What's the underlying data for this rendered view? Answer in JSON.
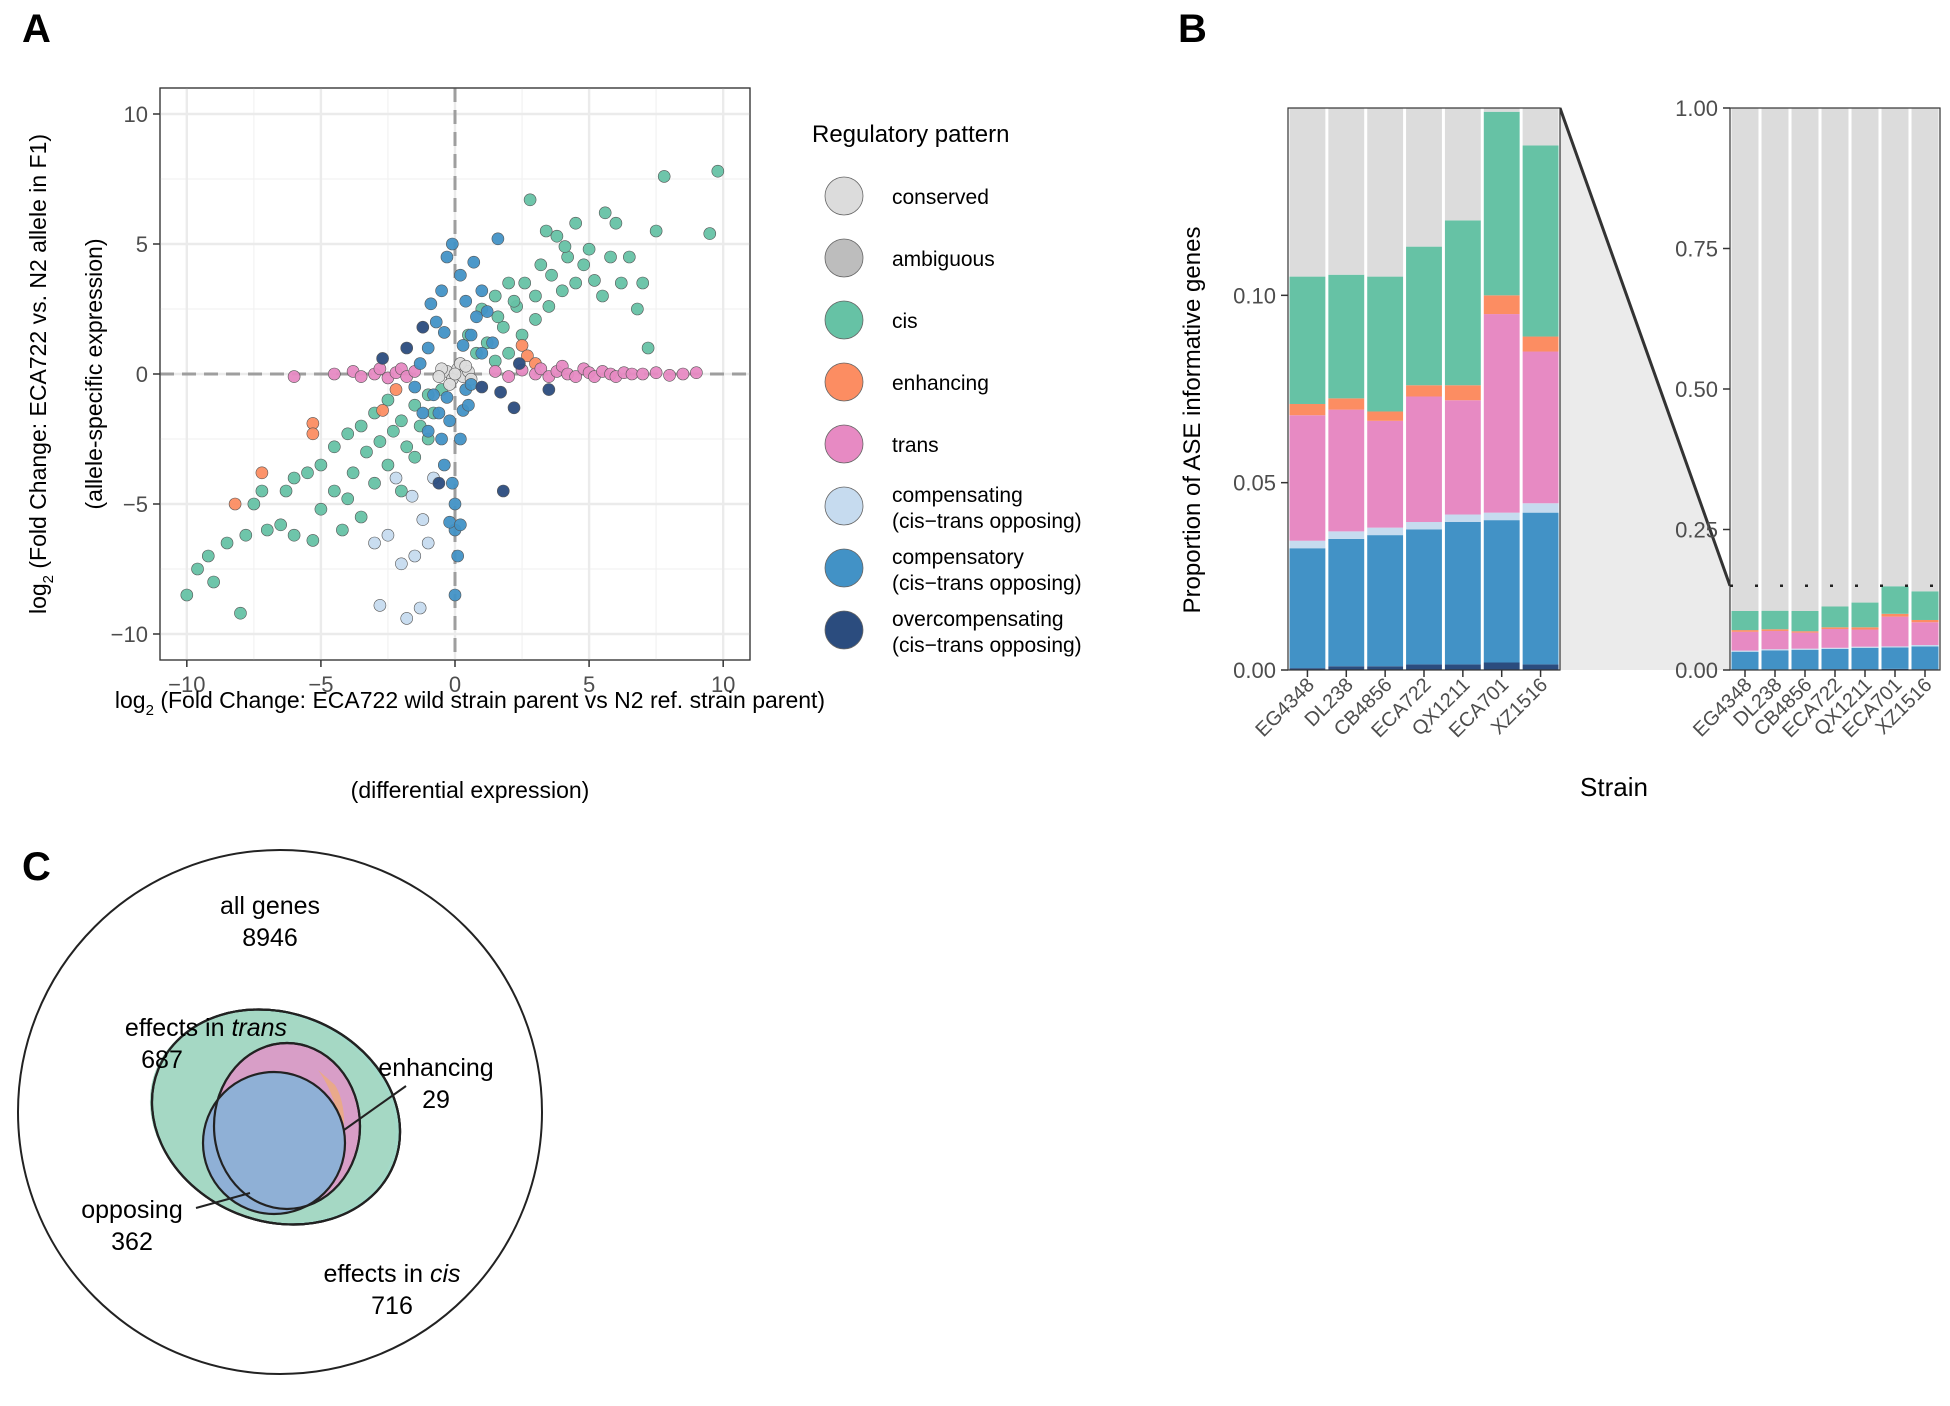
{
  "colors": {
    "conserved": "#dcdcdc",
    "ambiguous": "#bdbdbd",
    "cis": "#66c2a5",
    "enhancing": "#fc8d62",
    "trans": "#e78ac3",
    "compensating": "#c6dbef",
    "compensatory": "#4292c6",
    "overcompensating": "#2b4c7e",
    "grid": "#ebebeb",
    "zoom_fill": "#ebebeb"
  },
  "chart_data": [
    {
      "id": "A",
      "type": "scatter",
      "panel_label": "A",
      "xlabel": "log₂ (Fold Change: ECA722 wild strain parent vs N2 ref. strain parent)",
      "xlabel_prefix": "log",
      "xlabel_sub": "2",
      "xlabel_rest": " (Fold Change: ECA722 wild strain parent vs N2 ref. strain parent)",
      "xlabel2": "(differential expression)",
      "ylabel": "log₂ (Fold Change: ECA722 vs. N2 allele in F1)",
      "ylabel_prefix": "log",
      "ylabel_sub": "2",
      "ylabel_rest": " (Fold Change: ECA722 vs. N2 allele in F1)",
      "ylabel2": "(allele-specific expression)",
      "xlim": [
        -11,
        11
      ],
      "ylim": [
        -11,
        11
      ],
      "x_ticks": [
        -10,
        -5,
        0,
        5,
        10
      ],
      "y_ticks": [
        -10,
        -5,
        0,
        5,
        10
      ],
      "x_tick_labels": [
        "−10",
        "−5",
        "0",
        "5",
        "10"
      ],
      "y_tick_labels": [
        "−10",
        "−5",
        "0",
        "5",
        "10"
      ],
      "legend_title": "Regulatory pattern",
      "legend": [
        {
          "key": "conserved",
          "label": "conserved",
          "label2": ""
        },
        {
          "key": "ambiguous",
          "label": "ambiguous",
          "label2": ""
        },
        {
          "key": "cis",
          "label": "cis",
          "label2": ""
        },
        {
          "key": "enhancing",
          "label": "enhancing",
          "label2": ""
        },
        {
          "key": "trans",
          "label": "trans",
          "label2": ""
        },
        {
          "key": "compensating",
          "label": "compensating",
          "label2": "(cis−trans opposing)"
        },
        {
          "key": "compensatory",
          "label": "compensatory",
          "label2": "(cis−trans opposing)"
        },
        {
          "key": "overcompensating",
          "label": "overcompensating",
          "label2": "(cis−trans opposing)"
        }
      ],
      "series": [
        {
          "name": "cis",
          "points": [
            [
              -10,
              -8.5
            ],
            [
              -9.6,
              -7.5
            ],
            [
              -9.2,
              -7
            ],
            [
              -9,
              -8
            ],
            [
              -8.5,
              -6.5
            ],
            [
              -8,
              -9.2
            ],
            [
              -7.8,
              -6.2
            ],
            [
              -7.5,
              -5
            ],
            [
              -7.2,
              -4.5
            ],
            [
              -7,
              -6
            ],
            [
              -6.5,
              -5.8
            ],
            [
              -6.3,
              -4.5
            ],
            [
              -6,
              -4
            ],
            [
              -6,
              -6.2
            ],
            [
              -5.5,
              -3.8
            ],
            [
              -5.3,
              -6.4
            ],
            [
              -5,
              -3.5
            ],
            [
              -5,
              -5.2
            ],
            [
              -4.5,
              -4.5
            ],
            [
              -4.5,
              -2.8
            ],
            [
              -4.2,
              -6
            ],
            [
              -4,
              -2.3
            ],
            [
              -4,
              -4.8
            ],
            [
              -3.8,
              -3.8
            ],
            [
              -3.5,
              -2
            ],
            [
              -3.5,
              -5.5
            ],
            [
              -3.3,
              -3
            ],
            [
              -3,
              -4.2
            ],
            [
              -3,
              -1.5
            ],
            [
              -2.8,
              -2.6
            ],
            [
              -2.5,
              -3.5
            ],
            [
              -2.5,
              -1
            ],
            [
              -2.3,
              -2.2
            ],
            [
              -2,
              -4.5
            ],
            [
              -2,
              -1.8
            ],
            [
              -1.8,
              -2.8
            ],
            [
              -1.5,
              -1.2
            ],
            [
              -1.5,
              -3.2
            ],
            [
              -1.3,
              -2
            ],
            [
              -1,
              -0.8
            ],
            [
              -1,
              -2.5
            ],
            [
              -0.8,
              -1.5
            ],
            [
              -0.5,
              -0.6
            ],
            [
              0.5,
              1.5
            ],
            [
              0.8,
              0.8
            ],
            [
              1,
              2.5
            ],
            [
              1.2,
              1.2
            ],
            [
              1.5,
              3
            ],
            [
              1.5,
              0.5
            ],
            [
              1.8,
              1.8
            ],
            [
              2,
              3.5
            ],
            [
              2,
              0.8
            ],
            [
              2.3,
              2.6
            ],
            [
              2.5,
              1.5
            ],
            [
              2.8,
              6.7
            ],
            [
              3,
              3
            ],
            [
              3,
              2.1
            ],
            [
              3.2,
              4.2
            ],
            [
              3.5,
              2.6
            ],
            [
              3.6,
              3.8
            ],
            [
              3.8,
              5.3
            ],
            [
              4,
              3.2
            ],
            [
              4.2,
              4.5
            ],
            [
              4.5,
              5.8
            ],
            [
              4.5,
              3.5
            ],
            [
              4.8,
              4.2
            ],
            [
              5,
              4.8
            ],
            [
              5.2,
              3.6
            ],
            [
              5.5,
              3
            ],
            [
              5.8,
              4.5
            ],
            [
              6,
              5.8
            ],
            [
              6.2,
              3.5
            ],
            [
              6.5,
              4.5
            ],
            [
              6.8,
              2.5
            ],
            [
              7,
              3.5
            ],
            [
              7.2,
              1
            ],
            [
              7.5,
              5.5
            ],
            [
              7.8,
              7.6
            ],
            [
              9.5,
              5.4
            ],
            [
              9.8,
              7.8
            ],
            [
              2.2,
              2.8
            ],
            [
              2.6,
              3.5
            ],
            [
              1.6,
              2.2
            ],
            [
              3.4,
              5.5
            ],
            [
              4.1,
              4.9
            ],
            [
              5.6,
              6.2
            ]
          ]
        },
        {
          "name": "enhancing",
          "points": [
            [
              -8.2,
              -5
            ],
            [
              -7.2,
              -3.8
            ],
            [
              -5.3,
              -1.9
            ],
            [
              -5.3,
              -2.3
            ],
            [
              -2.7,
              -1.4
            ],
            [
              -2.2,
              -0.6
            ],
            [
              2.5,
              1.1
            ],
            [
              2.7,
              0.7
            ],
            [
              3,
              0.4
            ]
          ]
        },
        {
          "name": "trans",
          "points": [
            [
              -6,
              -0.1
            ],
            [
              -4.5,
              0
            ],
            [
              -3.8,
              0.1
            ],
            [
              -3.5,
              -0.1
            ],
            [
              -3,
              0
            ],
            [
              -2.8,
              0.2
            ],
            [
              -2.5,
              -0.15
            ],
            [
              -2.2,
              0.05
            ],
            [
              -2,
              0.2
            ],
            [
              -1.8,
              -0.1
            ],
            [
              -1.5,
              0.1
            ],
            [
              1.5,
              0.1
            ],
            [
              2,
              -0.1
            ],
            [
              2.5,
              0.15
            ],
            [
              3,
              0
            ],
            [
              3.2,
              0.2
            ],
            [
              3.5,
              -0.1
            ],
            [
              3.8,
              0.1
            ],
            [
              4,
              0.3
            ],
            [
              4.2,
              0
            ],
            [
              4.5,
              -0.1
            ],
            [
              4.8,
              0.2
            ],
            [
              5,
              0.05
            ],
            [
              5.2,
              -0.1
            ],
            [
              5.5,
              0.1
            ],
            [
              5.8,
              0
            ],
            [
              6,
              -0.1
            ],
            [
              6.3,
              0.05
            ],
            [
              6.6,
              0
            ],
            [
              7,
              0
            ],
            [
              7.5,
              0.05
            ],
            [
              8,
              -0.05
            ],
            [
              8.5,
              0
            ],
            [
              9,
              0.05
            ]
          ]
        },
        {
          "name": "conserved",
          "points": [
            [
              -0.3,
              0.1
            ],
            [
              -0.1,
              -0.2
            ],
            [
              0.1,
              0.2
            ],
            [
              0.3,
              -0.1
            ],
            [
              -0.5,
              0.2
            ],
            [
              0.5,
              0.1
            ],
            [
              0.2,
              0.4
            ],
            [
              -0.2,
              -0.4
            ],
            [
              0,
              0
            ],
            [
              0.6,
              -0.2
            ],
            [
              -0.6,
              -0.1
            ],
            [
              0.4,
              0.3
            ]
          ]
        },
        {
          "name": "compensating",
          "points": [
            [
              -3,
              -6.5
            ],
            [
              -2.8,
              -8.9
            ],
            [
              -2.5,
              -6.2
            ],
            [
              -2.2,
              -4
            ],
            [
              -2,
              -7.3
            ],
            [
              -1.8,
              -9.4
            ],
            [
              -1.5,
              -7
            ],
            [
              -1.3,
              -9
            ],
            [
              -1.2,
              -5.6
            ],
            [
              -1,
              -6.5
            ],
            [
              -0.8,
              -4
            ],
            [
              -1.6,
              -4.7
            ]
          ]
        },
        {
          "name": "compensatory",
          "points": [
            [
              -1.5,
              -0.5
            ],
            [
              -1.2,
              -1.5
            ],
            [
              -1,
              -2.2
            ],
            [
              -0.8,
              -0.8
            ],
            [
              -0.6,
              -1.5
            ],
            [
              -0.5,
              -2.5
            ],
            [
              -0.4,
              -3.5
            ],
            [
              -0.3,
              -0.9
            ],
            [
              -0.2,
              -1.8
            ],
            [
              -0.1,
              -4.2
            ],
            [
              0,
              -5
            ],
            [
              0,
              -6
            ],
            [
              0.1,
              -7
            ],
            [
              0,
              -8.5
            ],
            [
              -0.2,
              -5.7
            ],
            [
              0.2,
              -5.8
            ],
            [
              0.3,
              -1.4
            ],
            [
              0.4,
              -0.6
            ],
            [
              0.5,
              -1.2
            ],
            [
              0.6,
              -0.4
            ],
            [
              0.2,
              -2.5
            ],
            [
              -1,
              1
            ],
            [
              -0.7,
              2
            ],
            [
              -0.5,
              3.2
            ],
            [
              -0.3,
              4.5
            ],
            [
              -0.1,
              5
            ],
            [
              0.2,
              3.8
            ],
            [
              0.4,
              2.8
            ],
            [
              0.6,
              1.5
            ],
            [
              0.8,
              2.2
            ],
            [
              1,
              0.8
            ],
            [
              1,
              3.2
            ],
            [
              1.2,
              2.4
            ],
            [
              1.4,
              1.2
            ],
            [
              1.6,
              5.2
            ],
            [
              0.3,
              1.1
            ],
            [
              -0.4,
              1.6
            ],
            [
              -0.9,
              2.7
            ],
            [
              0.7,
              4.3
            ],
            [
              -1.3,
              0.4
            ]
          ]
        },
        {
          "name": "overcompensating",
          "points": [
            [
              -2.7,
              0.6
            ],
            [
              -1.8,
              1
            ],
            [
              -1.2,
              1.8
            ],
            [
              1,
              -0.5
            ],
            [
              1.7,
              -0.7
            ],
            [
              2.2,
              -1.3
            ],
            [
              3.5,
              -0.6
            ],
            [
              1.8,
              -4.5
            ],
            [
              2.4,
              0.4
            ],
            [
              -0.6,
              -4.2
            ]
          ]
        }
      ]
    },
    {
      "id": "B",
      "type": "bar",
      "stacked": true,
      "panel_label": "B",
      "ylabel": "Proportion of ASE informative genes",
      "xlabel": "Strain",
      "categories": [
        "EG4348",
        "DL238",
        "CB4856",
        "ECA722",
        "QX1211",
        "ECA701",
        "XZ1516"
      ],
      "stack_order": [
        "overcompensating",
        "compensatory",
        "compensating",
        "trans",
        "enhancing",
        "cis",
        "conserved"
      ],
      "series": [
        {
          "name": "overcompensating",
          "values": [
            0.0005,
            0.001,
            0.001,
            0.0015,
            0.0015,
            0.002,
            0.0015
          ]
        },
        {
          "name": "compensatory",
          "values": [
            0.032,
            0.034,
            0.035,
            0.036,
            0.038,
            0.038,
            0.0405
          ]
        },
        {
          "name": "compensating",
          "values": [
            0.002,
            0.002,
            0.002,
            0.002,
            0.002,
            0.002,
            0.0025
          ]
        },
        {
          "name": "trans",
          "values": [
            0.0335,
            0.0325,
            0.0285,
            0.0335,
            0.0305,
            0.053,
            0.0405
          ]
        },
        {
          "name": "enhancing",
          "values": [
            0.003,
            0.003,
            0.0025,
            0.003,
            0.004,
            0.005,
            0.004
          ]
        },
        {
          "name": "cis",
          "values": [
            0.034,
            0.033,
            0.036,
            0.037,
            0.044,
            0.049,
            0.051
          ]
        }
      ],
      "left_panel": {
        "ylim": [
          0,
          0.15
        ],
        "y_ticks": [
          0,
          0.05,
          0.1
        ],
        "y_tick_labels": [
          "0.00",
          "0.05",
          "0.10"
        ]
      },
      "right_panel": {
        "ylim": [
          0,
          1
        ],
        "y_ticks": [
          0,
          0.25,
          0.5,
          0.75,
          1
        ],
        "y_tick_labels": [
          "0.00",
          "0.25",
          "0.50",
          "0.75",
          "1.00"
        ],
        "zoom_line_value": 0.15
      }
    },
    {
      "id": "C",
      "type": "diagram",
      "panel_label": "C",
      "sets": {
        "all": {
          "label": "all genes",
          "count": "8946"
        },
        "trans": {
          "label_prefix": "effects in ",
          "label_em": "trans",
          "count": "687"
        },
        "cis": {
          "label_prefix": "effects in ",
          "label_em": "cis",
          "count": "716"
        },
        "enhancing": {
          "label": "enhancing",
          "count": "29"
        },
        "opposing": {
          "label": "opposing",
          "count": "362"
        }
      }
    }
  ]
}
